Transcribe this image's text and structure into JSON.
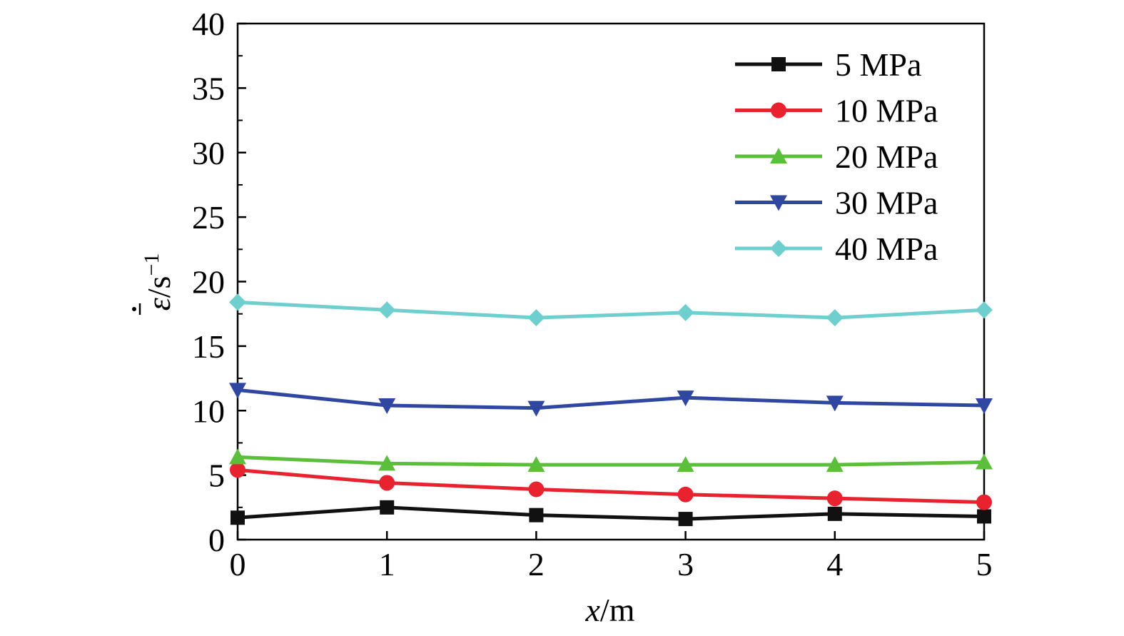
{
  "chart_data": {
    "type": "line",
    "title": "",
    "xlabel": {
      "italic": "x",
      "rest": "/m"
    },
    "ylabel": {
      "symbol": "ε",
      "unit": "/s",
      "exp": "−1"
    },
    "xlim": [
      0,
      5
    ],
    "ylim": [
      0,
      40
    ],
    "xticks": [
      "0",
      "1",
      "2",
      "3",
      "4",
      "5"
    ],
    "yticks": [
      "0",
      "5",
      "10",
      "15",
      "20",
      "25",
      "30",
      "35",
      "40"
    ],
    "grid": false,
    "legend_position": "top-right",
    "x": [
      0,
      1,
      2,
      3,
      4,
      5
    ],
    "series": [
      {
        "name": "5 MPa",
        "marker": "square",
        "color": "#111111",
        "values": [
          1.7,
          2.5,
          1.9,
          1.6,
          2.0,
          1.8
        ]
      },
      {
        "name": "10 MPa",
        "marker": "circle",
        "color": "#e8222e",
        "values": [
          5.4,
          4.4,
          3.9,
          3.5,
          3.2,
          2.9
        ]
      },
      {
        "name": "20 MPa",
        "marker": "triangle-up",
        "color": "#5cbf3b",
        "values": [
          6.4,
          5.9,
          5.8,
          5.8,
          5.8,
          6.0
        ]
      },
      {
        "name": "30 MPa",
        "marker": "triangle-down",
        "color": "#2f47a0",
        "values": [
          11.6,
          10.4,
          10.2,
          11.0,
          10.6,
          10.4
        ]
      },
      {
        "name": "40 MPa",
        "marker": "diamond",
        "color": "#6fcfcf",
        "values": [
          18.4,
          17.8,
          17.2,
          17.6,
          17.2,
          17.8
        ]
      }
    ]
  }
}
